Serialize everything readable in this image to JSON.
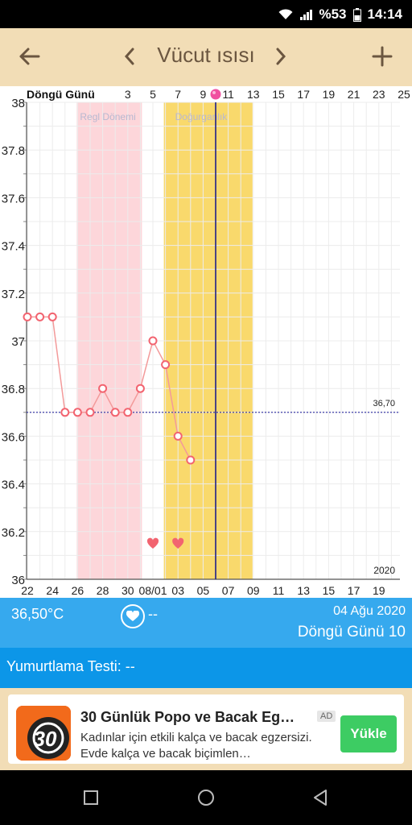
{
  "status": {
    "battery": "%53",
    "time": "14:14"
  },
  "appbar": {
    "title": "Vücut ısısı"
  },
  "chart": {
    "header_label": "Döngü Günü",
    "cycle_days": [
      "3",
      "5",
      "7",
      "9",
      "11",
      "13",
      "15",
      "17",
      "19",
      "21",
      "23",
      "25"
    ],
    "y_ticks": [
      "38",
      "37.8",
      "37.6",
      "37.4",
      "37.2",
      "37",
      "36.8",
      "36.6",
      "36.4",
      "36.2",
      "36"
    ],
    "x_ticks": [
      "22",
      "24",
      "26",
      "28",
      "30",
      "08/01",
      "03",
      "05",
      "07",
      "09",
      "11",
      "13",
      "15",
      "17",
      "19"
    ],
    "period_label": "Regl Dönemi",
    "fertile_label": "Doğurganlık",
    "baseline_label": "36,70",
    "year_label": "2020"
  },
  "chart_data": {
    "type": "line",
    "y_range": [
      36,
      38
    ],
    "baseline": 36.7,
    "points": [
      {
        "x": "07-21",
        "y": 37.1
      },
      {
        "x": "07-22",
        "y": 37.1
      },
      {
        "x": "07-23",
        "y": 37.1
      },
      {
        "x": "07-24",
        "y": 36.7
      },
      {
        "x": "07-25",
        "y": 36.7
      },
      {
        "x": "07-26",
        "y": 36.7
      },
      {
        "x": "07-27",
        "y": 36.8
      },
      {
        "x": "07-28",
        "y": 36.7
      },
      {
        "x": "07-29",
        "y": 36.7
      },
      {
        "x": "07-30",
        "y": 36.8
      },
      {
        "x": "07-31",
        "y": 37.0
      },
      {
        "x": "08-01",
        "y": 36.9
      },
      {
        "x": "08-02",
        "y": 36.6
      },
      {
        "x": "08-03",
        "y": 36.5
      }
    ],
    "hearts": [
      "07-31",
      "08-02"
    ],
    "colors": {
      "period": "#fdd6da",
      "fertile": "#f9d96c",
      "line": "#f39a9a",
      "marker": "#f26470",
      "baseline": "#2a2aa0",
      "today": "#1e1e8a"
    }
  },
  "info": {
    "temp": "36,50°C",
    "sex": "--",
    "date": "04 Ağu 2020",
    "cycle_day": "Döngü Günü 10"
  },
  "test": {
    "label": "Yumurtlama Testi: --"
  },
  "ad": {
    "icon_text": "30",
    "title": "30 Günlük Popo ve Bacak Eg…",
    "badge": "AD",
    "desc": "Kadınlar için etkili kalça ve bacak egzersizi. Evde kalça ve bacak biçimlen…",
    "button": "Yükle"
  }
}
